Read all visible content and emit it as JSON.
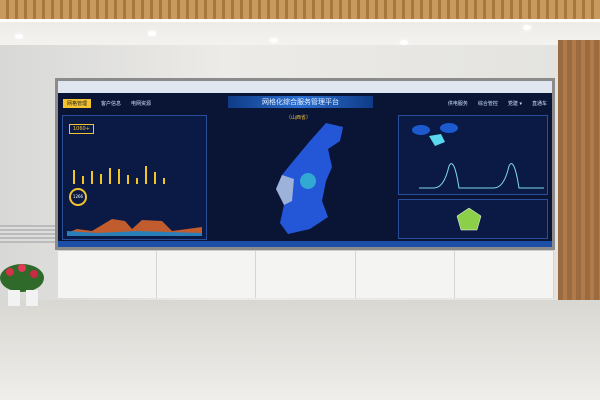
{
  "dashboard": {
    "title": "网格化综合服务管理平台",
    "nav_left": [
      "网格管理",
      "客户信息",
      "电网资源"
    ],
    "nav_right": [
      "供电服务",
      "综合管控",
      "党建 ▾",
      "直通车"
    ],
    "map_label": "（山西省）",
    "stats": [
      "1060+",
      "1266"
    ]
  },
  "colors": {
    "screen_bg": "#0a1536",
    "accent": "#f2c230",
    "map_blue": "#2457d8",
    "chart_orange": "#e0692a",
    "line_cyan": "#7fd8e8"
  }
}
